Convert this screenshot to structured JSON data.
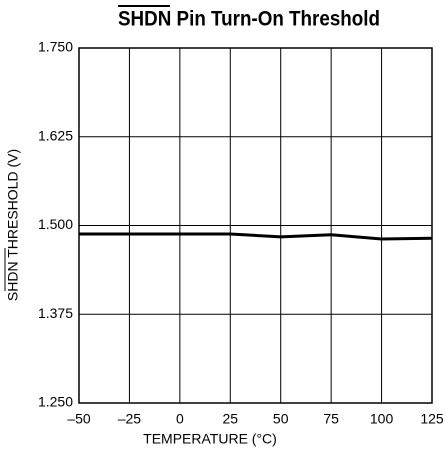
{
  "chart_data": {
    "type": "line",
    "title": "SHDN Pin Turn-On Threshold",
    "x_label": "TEMPERATURE (°C)",
    "y_label": "SHDN THRESHOLD (V)",
    "x": [
      -50,
      -25,
      0,
      25,
      50,
      75,
      100,
      125
    ],
    "series": [
      {
        "name": "Threshold",
        "color": "#000000",
        "values": [
          1.488,
          1.488,
          1.488,
          1.488,
          1.484,
          1.487,
          1.481,
          1.482
        ]
      }
    ],
    "xlim": [
      -50,
      125
    ],
    "xticks": [
      {
        "value": -50,
        "label": "–50"
      },
      {
        "value": -25,
        "label": "–25"
      },
      0,
      25,
      50,
      75,
      100,
      125
    ],
    "ylim": [
      1.25,
      1.75
    ],
    "yticks": [
      {
        "value": 1.25,
        "label": "1.250"
      },
      {
        "value": 1.375,
        "label": "1.375"
      },
      {
        "value": 1.5,
        "label": "1.500"
      },
      {
        "value": 1.625,
        "label": "1.625"
      },
      {
        "value": 1.75,
        "label": "1.750"
      }
    ],
    "grid": true
  }
}
